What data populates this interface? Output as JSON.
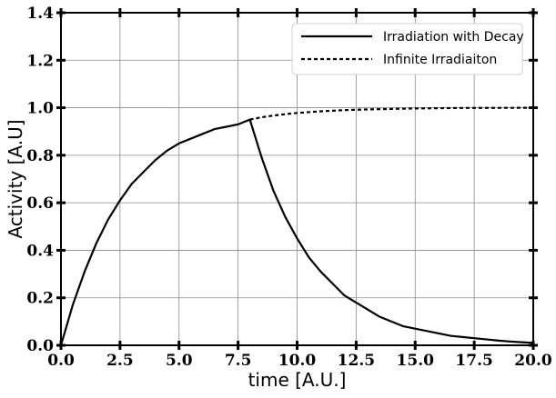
{
  "chart_data": {
    "type": "line",
    "xlabel": "time [A.U.]",
    "ylabel": "Activity [A.U]",
    "xlim": [
      0,
      20
    ],
    "ylim": [
      0,
      1.4
    ],
    "xticks": [
      "0.0",
      "2.5",
      "5.0",
      "7.5",
      "10.0",
      "12.5",
      "15.0",
      "17.5",
      "20.0"
    ],
    "yticks": [
      "0.0",
      "0.2",
      "0.4",
      "0.6",
      "0.8",
      "1.0",
      "1.2",
      "1.4"
    ],
    "grid": true,
    "legend_position": "top-right",
    "series": [
      {
        "name": "Irradiation with Decay",
        "style": "solid",
        "color": "#000000",
        "x": [
          0,
          0.5,
          1,
          1.5,
          2,
          2.5,
          3,
          3.5,
          4,
          4.5,
          5,
          5.5,
          6,
          6.5,
          7,
          7.5,
          8,
          8.5,
          9,
          9.5,
          10,
          10.5,
          11,
          11.5,
          12,
          12.5,
          13,
          13.5,
          14,
          14.5,
          15,
          15.5,
          16,
          16.5,
          17,
          17.5,
          18,
          18.5,
          19,
          19.5,
          20
        ],
        "y": [
          0,
          0.17,
          0.31,
          0.43,
          0.53,
          0.61,
          0.68,
          0.73,
          0.78,
          0.82,
          0.85,
          0.87,
          0.89,
          0.91,
          0.92,
          0.93,
          0.95,
          0.79,
          0.65,
          0.54,
          0.45,
          0.37,
          0.31,
          0.26,
          0.21,
          0.18,
          0.15,
          0.12,
          0.1,
          0.08,
          0.07,
          0.06,
          0.05,
          0.04,
          0.035,
          0.03,
          0.025,
          0.02,
          0.016,
          0.013,
          0.01
        ]
      },
      {
        "name": "Infinite Irradiaiton",
        "style": "dashed",
        "color": "#000000",
        "x": [
          8,
          8.5,
          9,
          9.5,
          10,
          11,
          12,
          13,
          14,
          15,
          16,
          17,
          18,
          19,
          20
        ],
        "y": [
          0.95,
          0.96,
          0.967,
          0.973,
          0.978,
          0.985,
          0.99,
          0.993,
          0.995,
          0.997,
          0.998,
          0.999,
          0.9993,
          0.9996,
          0.9998
        ]
      }
    ]
  }
}
